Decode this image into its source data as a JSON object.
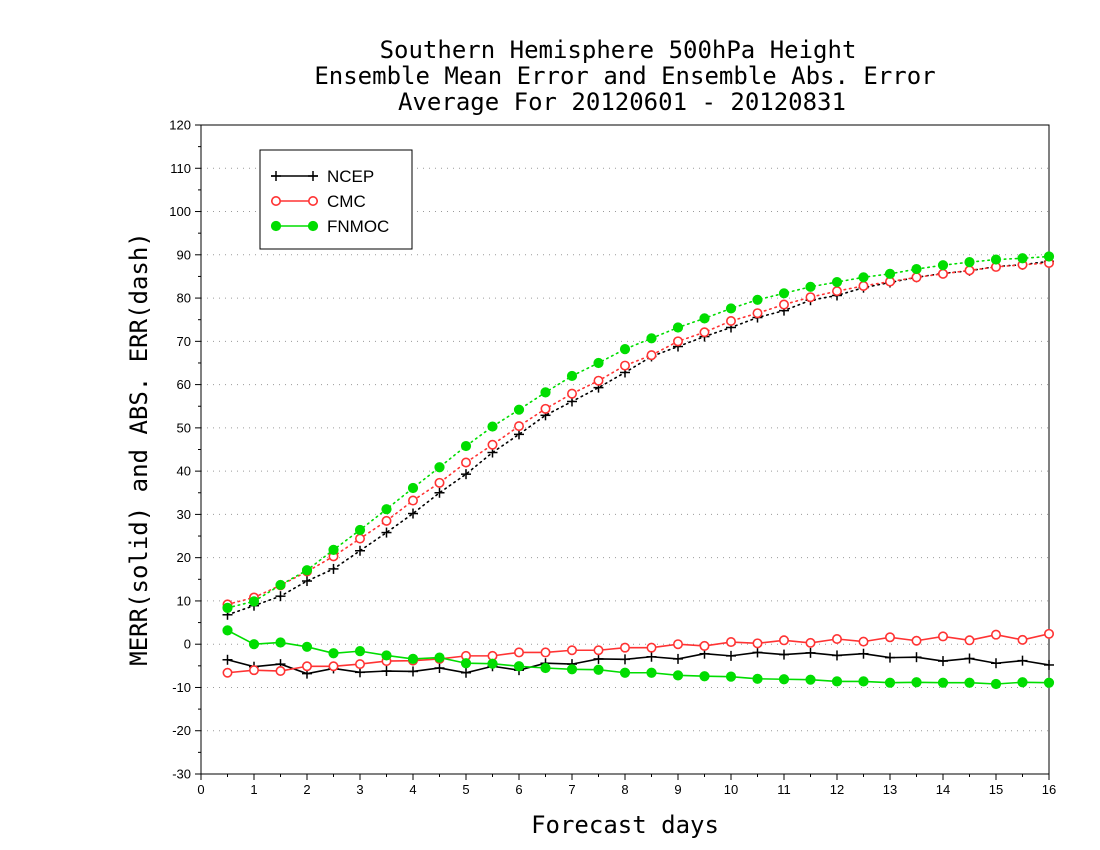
{
  "chart_data": {
    "type": "line",
    "title_lines": [
      "Southern Hemisphere 500hPa Height",
      "Ensemble Mean Error and Ensemble Abs. Error",
      "Average For 20120601 - 20120831"
    ],
    "xlabel": "Forecast days",
    "ylabel": "MERR(solid) and ABS. ERR(dash)",
    "xlim": [
      0,
      16
    ],
    "ylim": [
      -30,
      120
    ],
    "x_ticks": [
      "0",
      "1",
      "2",
      "3",
      "4",
      "5",
      "6",
      "7",
      "8",
      "9",
      "10",
      "11",
      "12",
      "13",
      "14",
      "15",
      "16"
    ],
    "y_ticks": [
      "-30",
      "-20",
      "-10",
      "0",
      "10",
      "20",
      "30",
      "40",
      "50",
      "60",
      "70",
      "80",
      "90",
      "100",
      "110",
      "120"
    ],
    "x_tick_values": [
      0,
      1,
      2,
      3,
      4,
      5,
      6,
      7,
      8,
      9,
      10,
      11,
      12,
      13,
      14,
      15,
      16
    ],
    "y_tick_values": [
      -30,
      -20,
      -10,
      0,
      10,
      20,
      30,
      40,
      50,
      60,
      70,
      80,
      90,
      100,
      110,
      120
    ],
    "grid": "horizontal dotted",
    "legend_placement": "top-left",
    "x": [
      0.5,
      1,
      1.5,
      2,
      2.5,
      3,
      3.5,
      4,
      4.5,
      5,
      5.5,
      6,
      6.5,
      7,
      7.5,
      8,
      8.5,
      9,
      9.5,
      10,
      10.5,
      11,
      11.5,
      12,
      12.5,
      13,
      13.5,
      14,
      14.5,
      15,
      15.5,
      16
    ],
    "series": [
      {
        "name": "NCEP",
        "color": "#000000",
        "marker": "plus",
        "merr": [
          -3.6,
          -5.2,
          -4.6,
          -6.8,
          -5.6,
          -6.5,
          -6.2,
          -6.3,
          -5.5,
          -6.6,
          -5.1,
          -6.0,
          -4.4,
          -4.6,
          -3.4,
          -3.5,
          -2.9,
          -3.4,
          -2.2,
          -2.7,
          -1.9,
          -2.4,
          -2.0,
          -2.6,
          -2.2,
          -3.1,
          -3.0,
          -3.9,
          -3.3,
          -4.4,
          -3.8,
          -4.8
        ],
        "abserr": [
          6.8,
          8.9,
          11.1,
          14.6,
          17.4,
          21.6,
          25.8,
          30.2,
          35.0,
          39.3,
          44.3,
          48.5,
          52.9,
          56.1,
          59.3,
          62.8,
          66.5,
          68.8,
          71.1,
          73.2,
          75.5,
          77.1,
          79.5,
          80.6,
          82.4,
          83.6,
          84.8,
          85.7,
          86.3,
          87.3,
          87.7,
          88.5
        ]
      },
      {
        "name": "CMC",
        "color": "#ff3333",
        "marker": "open-circle",
        "merr": [
          -6.6,
          -6.0,
          -6.2,
          -5.1,
          -5.1,
          -4.6,
          -3.9,
          -3.8,
          -3.4,
          -2.7,
          -2.7,
          -1.9,
          -1.9,
          -1.4,
          -1.4,
          -0.8,
          -0.8,
          0.0,
          -0.4,
          0.5,
          0.2,
          0.9,
          0.3,
          1.2,
          0.6,
          1.6,
          0.8,
          1.8,
          0.9,
          2.2,
          1.0,
          2.4
        ],
        "abserr": [
          9.2,
          10.8,
          13.6,
          16.8,
          20.3,
          24.4,
          28.5,
          33.2,
          37.3,
          42.0,
          46.1,
          50.4,
          54.4,
          57.9,
          60.9,
          64.4,
          66.8,
          70.0,
          72.1,
          74.7,
          76.5,
          78.5,
          80.2,
          81.6,
          82.8,
          83.8,
          84.8,
          85.6,
          86.4,
          87.2,
          87.7,
          88.1
        ]
      },
      {
        "name": "FNMOC",
        "color": "#00dd00",
        "marker": "filled-circle",
        "merr": [
          3.2,
          0.0,
          0.4,
          -0.6,
          -2.1,
          -1.6,
          -2.6,
          -3.4,
          -3.1,
          -4.4,
          -4.5,
          -5.1,
          -5.5,
          -5.8,
          -5.9,
          -6.6,
          -6.6,
          -7.2,
          -7.4,
          -7.5,
          -8.0,
          -8.1,
          -8.2,
          -8.6,
          -8.6,
          -8.9,
          -8.8,
          -8.9,
          -8.9,
          -9.2,
          -8.8,
          -8.9
        ],
        "abserr": [
          8.4,
          9.9,
          13.7,
          17.1,
          21.8,
          26.4,
          31.2,
          36.1,
          40.9,
          45.8,
          50.3,
          54.2,
          58.2,
          62.0,
          65.0,
          68.2,
          70.7,
          73.2,
          75.3,
          77.6,
          79.6,
          81.1,
          82.6,
          83.7,
          84.8,
          85.6,
          86.7,
          87.6,
          88.3,
          88.9,
          89.2,
          89.6
        ]
      }
    ]
  }
}
